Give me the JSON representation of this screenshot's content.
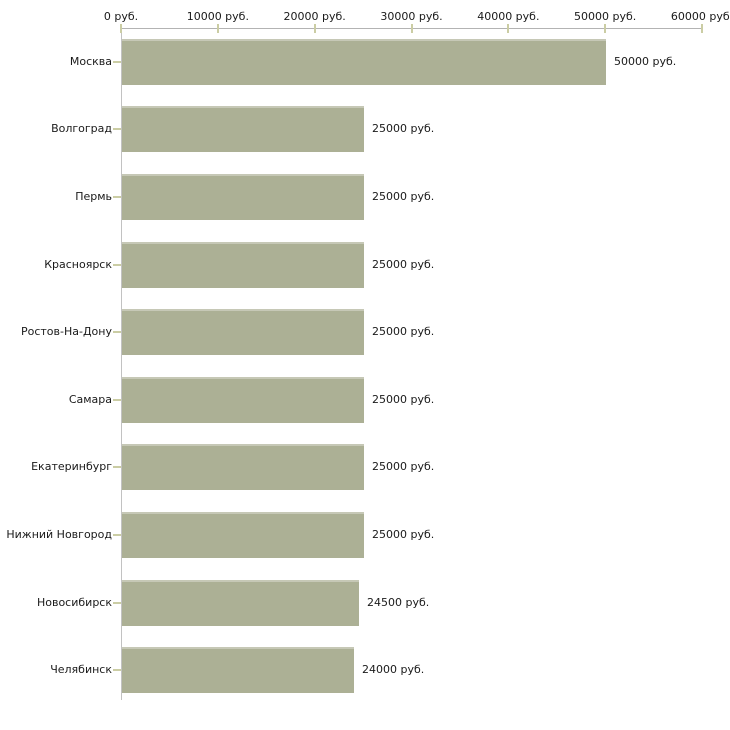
{
  "chart_data": {
    "type": "bar",
    "orientation": "horizontal",
    "title": "",
    "xlabel": "",
    "ylabel": "",
    "unit": "руб.",
    "categories": [
      "Москва",
      "Волгоград",
      "Пермь",
      "Красноярск",
      "Ростов-На-Дону",
      "Самара",
      "Екатеринбург",
      "Нижний Новгород",
      "Новосибирск",
      "Челябинск"
    ],
    "values": [
      50000,
      25000,
      25000,
      25000,
      25000,
      25000,
      25000,
      25000,
      24500,
      24000
    ],
    "data_labels": [
      "50000 руб.",
      "25000 руб.",
      "25000 руб.",
      "25000 руб.",
      "25000 руб.",
      "25000 руб.",
      "25000 руб.",
      "25000 руб.",
      "24500 руб.",
      "24000 руб."
    ],
    "x_ticks": [
      0,
      10000,
      20000,
      30000,
      40000,
      50000,
      60000
    ],
    "x_tick_labels": [
      "0 руб.",
      "10000 руб.",
      "20000 руб.",
      "30000 руб.",
      "40000 руб.",
      "50000 руб.",
      "60000 руб."
    ],
    "xlim": [
      0,
      60000
    ],
    "grid": false,
    "legend": "none",
    "colors": {
      "bar": "#acb095",
      "bar_top_edge": "#c6c8b6",
      "axis_line": "#b3b3b3",
      "tick_mark": "#cbcda4",
      "text": "#1a1a1a",
      "background": "#ffffff"
    }
  }
}
